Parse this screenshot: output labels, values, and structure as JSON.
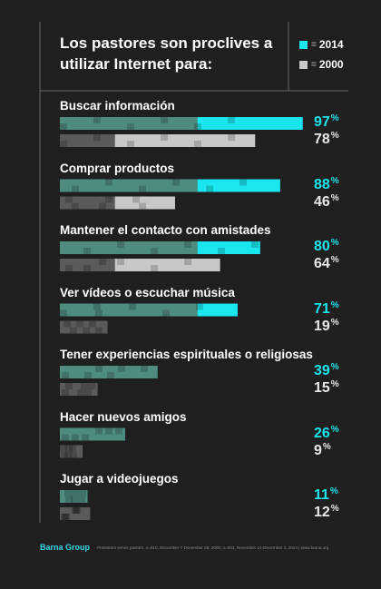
{
  "header": {
    "title": "Los pastores son proclives a utilizar Internet para:"
  },
  "legend": [
    {
      "label": "2014",
      "color": "#19e6ef"
    },
    {
      "label": "2000",
      "color": "#c8c8c8"
    }
  ],
  "chart_data": {
    "type": "bar",
    "orientation": "horizontal",
    "title": "Los pastores son proclives a utilizar Internet para:",
    "categories": [
      "Buscar información",
      "Comprar productos",
      "Mantener el contacto con amistades",
      "Ver vídeos o escuchar música",
      "Tener experiencias espirituales o religiosas",
      "Hacer nuevos amigos",
      "Jugar a videojuegos"
    ],
    "series": [
      {
        "name": "2014",
        "values": [
          97,
          88,
          80,
          71,
          39,
          26,
          11
        ]
      },
      {
        "name": "2000",
        "values": [
          78,
          46,
          64,
          19,
          15,
          9,
          12
        ]
      }
    ],
    "value_suffix": "%",
    "xlim": [
      0,
      100
    ],
    "legend_position": "top-right",
    "grid": false
  },
  "footer": {
    "brand": "Barna Group",
    "source": "Protestant senior pastors, n=610, December 7-December 28, 2000; n=601, November 14-December 3, 2014 | www.barna.org"
  },
  "colors": {
    "background": "#1f1f1f",
    "accent_2014": "#19e6ef",
    "muted_2014": "#4f8c80",
    "accent_2000": "#c8c8c8",
    "muted_2000": "#5a5a5a",
    "frame": "#6a6a6a",
    "pct_2014": "#19e6ef",
    "pct_2000": "#e8e8e8"
  }
}
